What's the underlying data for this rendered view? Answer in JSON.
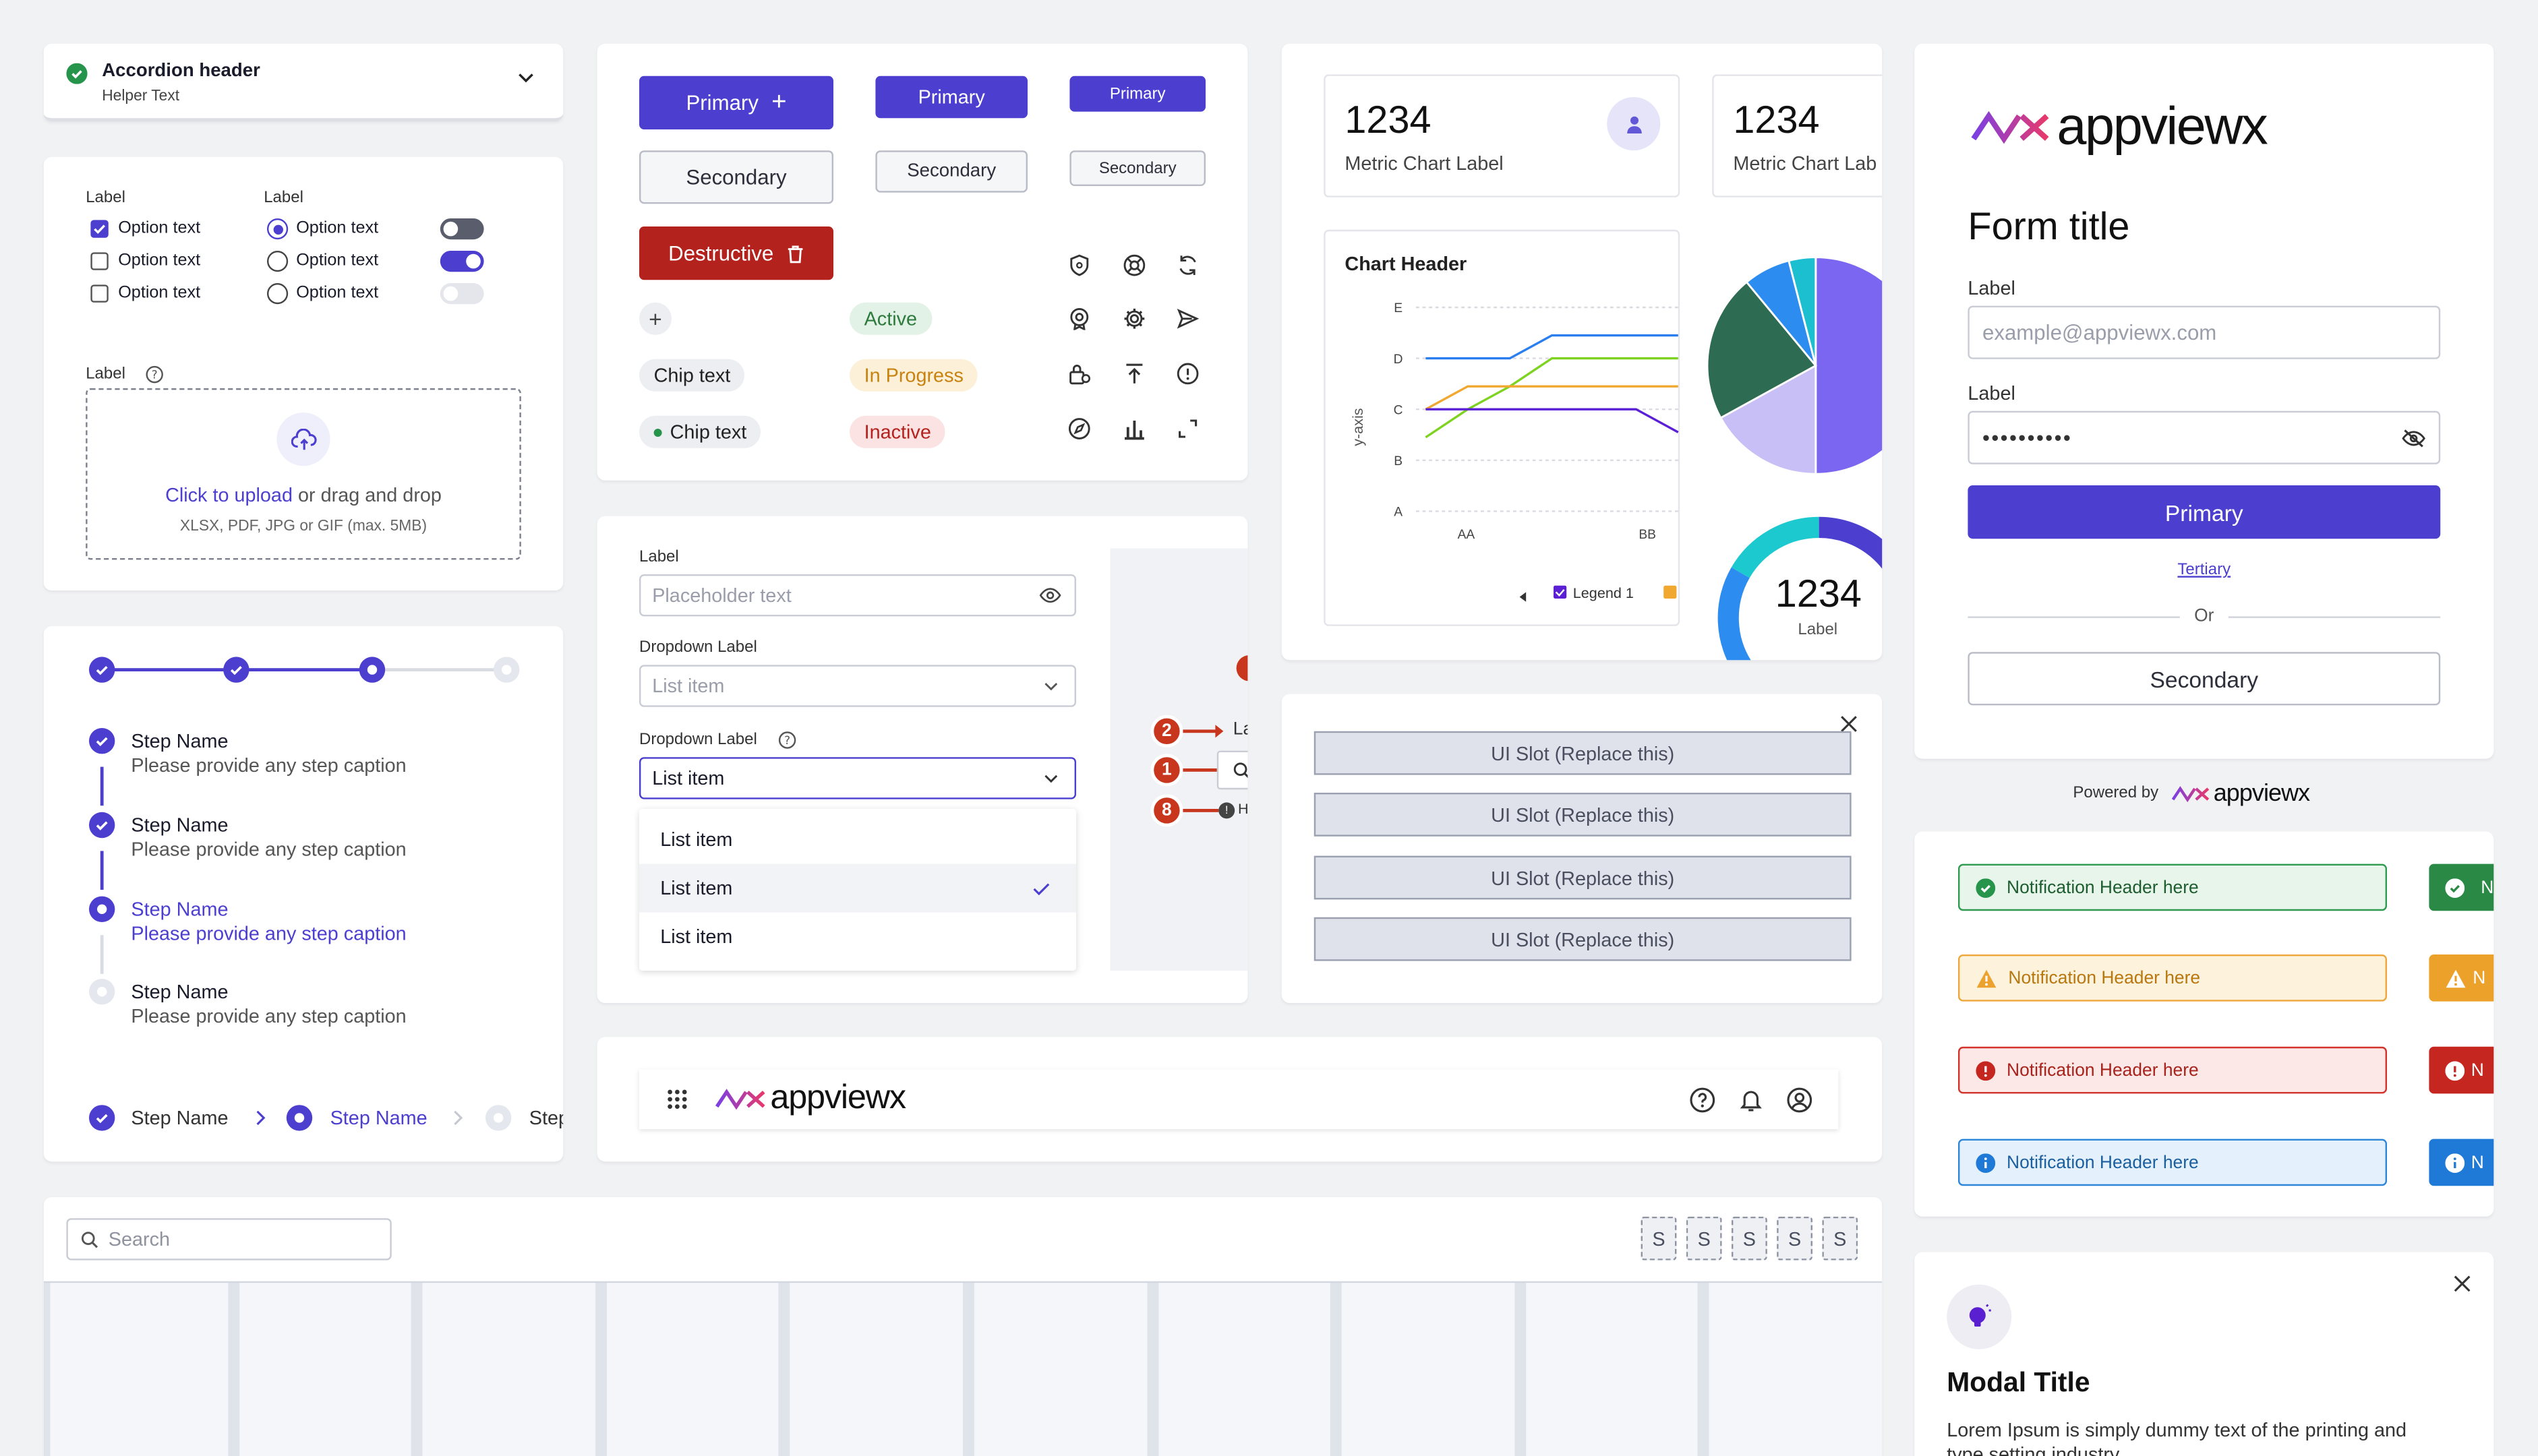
{
  "accordion": {
    "header": "Accordion header",
    "helper": "Helper Text"
  },
  "controls": {
    "checkbox_label": "Label",
    "radio_label": "Label",
    "option": "Option text",
    "upload_label": "Label",
    "upload_link": "Click to upload",
    "upload_rest": " or drag and drop",
    "upload_formats": "XLSX, PDF, JPG or GIF (max. 5MB)"
  },
  "stepper": {
    "steps": [
      {
        "name": "Step Name",
        "caption": "Please provide any step caption",
        "state": "done"
      },
      {
        "name": "Step Name",
        "caption": "Please provide any step caption",
        "state": "done"
      },
      {
        "name": "Step Name",
        "caption": "Please provide any step caption",
        "state": "current"
      },
      {
        "name": "Step Name",
        "caption": "Please provide any step caption",
        "state": "todo"
      }
    ],
    "bread": [
      "Step Name",
      "Step Name",
      "Step"
    ]
  },
  "buttons": {
    "primary": "Primary",
    "secondary": "Secondary",
    "destructive": "Destructive",
    "chip": "Chip text",
    "status": {
      "active": "Active",
      "progress": "In Progress",
      "inactive": "Inactive"
    }
  },
  "form_fields": {
    "label": "Label",
    "placeholder": "Placeholder text",
    "dropdown_label": "Dropdown Label",
    "list_item": "List item",
    "options": [
      "List item",
      "List item",
      "List item"
    ]
  },
  "callouts": [
    "2",
    "1",
    "8"
  ],
  "callout_texts": [
    "La",
    "H"
  ],
  "metrics": {
    "value": "1234",
    "label": "Metric Chart Label",
    "label2": "Metric Chart Lab"
  },
  "chart_data": [
    {
      "type": "line",
      "title": "Chart Header",
      "ylabel": "y-axis",
      "y_categories": [
        "A",
        "B",
        "C",
        "D",
        "E"
      ],
      "x_ticks": [
        "AA",
        "BB"
      ],
      "legend": [
        "Legend 1"
      ],
      "series": [
        {
          "name": "blue",
          "color": "#2a7ef0",
          "values": [
            "D",
            "D",
            "D",
            "D+",
            "D+",
            "D+",
            "D+"
          ]
        },
        {
          "name": "green",
          "color": "#7ed321",
          "values": [
            "B+",
            "C",
            "C+",
            "D",
            "D",
            "D",
            "D"
          ]
        },
        {
          "name": "orange",
          "color": "#f0a830",
          "values": [
            "C",
            "C+",
            "C+",
            "C+",
            "C+",
            "C+",
            "C+"
          ]
        },
        {
          "name": "purple",
          "color": "#5b1fd6",
          "values": [
            "C",
            "C",
            "C",
            "C",
            "C",
            "C",
            "C-"
          ]
        }
      ]
    },
    {
      "type": "pie",
      "slices": [
        {
          "label": "purple",
          "value": 50,
          "color": "#7a66f0"
        },
        {
          "label": "lavender",
          "value": 17,
          "color": "#c7bff5"
        },
        {
          "label": "dark green",
          "value": 22,
          "color": "#2d6b52"
        },
        {
          "label": "blue",
          "value": 7,
          "color": "#2c8cf0"
        },
        {
          "label": "teal",
          "value": 4,
          "color": "#1bbfd0"
        }
      ]
    },
    {
      "type": "pie",
      "title": "1234",
      "subtitle": "Label"
    }
  ],
  "ui_slot": {
    "label": "UI Slot (Replace this)"
  },
  "header_bar": {
    "brand": "appviewx"
  },
  "login": {
    "brand": "appviewx",
    "title": "Form title",
    "label": "Label",
    "email_placeholder": "example@appviewx.com",
    "password_mask": "••••••••••",
    "primary": "Primary",
    "tertiary": "Tertiary",
    "or": "Or",
    "secondary": "Secondary",
    "powered": "Powered by",
    "powered_brand": "appviewx"
  },
  "notifications": [
    {
      "text": "Notification Header here",
      "type": "success"
    },
    {
      "text": "Notification Header here",
      "type": "warning"
    },
    {
      "text": "Notification Header here",
      "type": "error"
    },
    {
      "text": "Notification Header here",
      "type": "info"
    }
  ],
  "notif_tag_letter": "N",
  "table": {
    "search_placeholder": "Search",
    "size_letter": "S"
  },
  "modal": {
    "title": "Modal Title",
    "body": "Lorem Ipsum is simply dummy text of the printing and",
    "body2": "type setting industry"
  },
  "colors": {
    "primary": "#4c3fcf",
    "destructive": "#b4221d",
    "success": "#27944b",
    "warning": "#f0a52b",
    "error": "#c5261f",
    "info": "#1e7ad6"
  }
}
